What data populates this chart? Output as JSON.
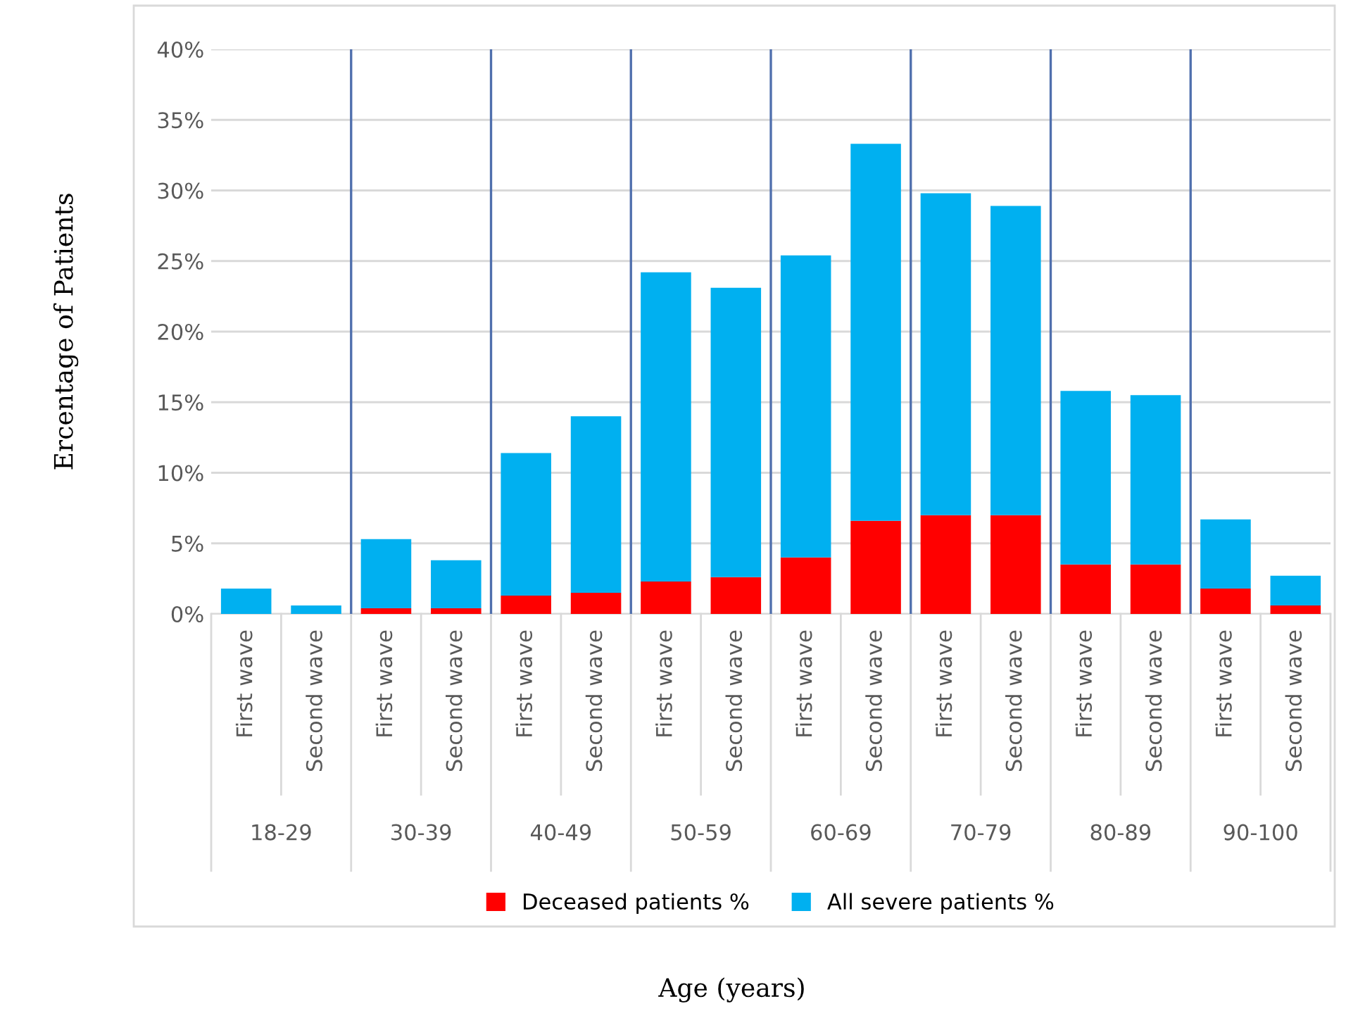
{
  "chart_data": {
    "type": "bar",
    "stacked": true,
    "ylabel": "Ercentage of Patients",
    "categories": [
      "First wave",
      "Second wave",
      "First wave",
      "Second wave",
      "First wave",
      "Second wave",
      "First wave",
      "Second wave",
      "First wave",
      "Second wave",
      "First wave",
      "Second wave",
      "First wave",
      "Second wave",
      "First wave",
      "Second wave"
    ],
    "annotations": [
      "18-29",
      "30-39",
      "40-49",
      "50-59",
      "60-69",
      "70-79",
      "80-89",
      "90-100",
      "Age (years)"
    ],
    "series": [
      {
        "name": "Deceased patients %",
        "color": "#ff0000",
        "values": [
          0,
          0,
          0.4,
          0.4,
          1.3,
          1.5,
          2.3,
          2.6,
          4.0,
          6.6,
          7.0,
          7.0,
          3.5,
          3.5,
          1.8,
          0.6
        ]
      },
      {
        "name": "All severe patients %",
        "color": "#00b0f0",
        "values": [
          1.8,
          0.6,
          4.9,
          3.4,
          10.1,
          12.5,
          21.9,
          20.5,
          21.4,
          26.7,
          22.8,
          21.9,
          12.3,
          12.0,
          4.9,
          2.1
        ]
      }
    ],
    "ylim": [
      0,
      40
    ],
    "yticks": [
      {
        "value": 0,
        "label": "0%"
      },
      {
        "value": 5,
        "label": "5%"
      },
      {
        "value": 10,
        "label": "10%"
      },
      {
        "value": 15,
        "label": "15%"
      },
      {
        "value": 20,
        "label": "20%"
      },
      {
        "value": 25,
        "label": "25%"
      },
      {
        "value": 30,
        "label": "30%"
      },
      {
        "value": 35,
        "label": "35%"
      },
      {
        "value": 40,
        "label": "40%"
      }
    ],
    "grid": "y",
    "legend": "bottom"
  }
}
